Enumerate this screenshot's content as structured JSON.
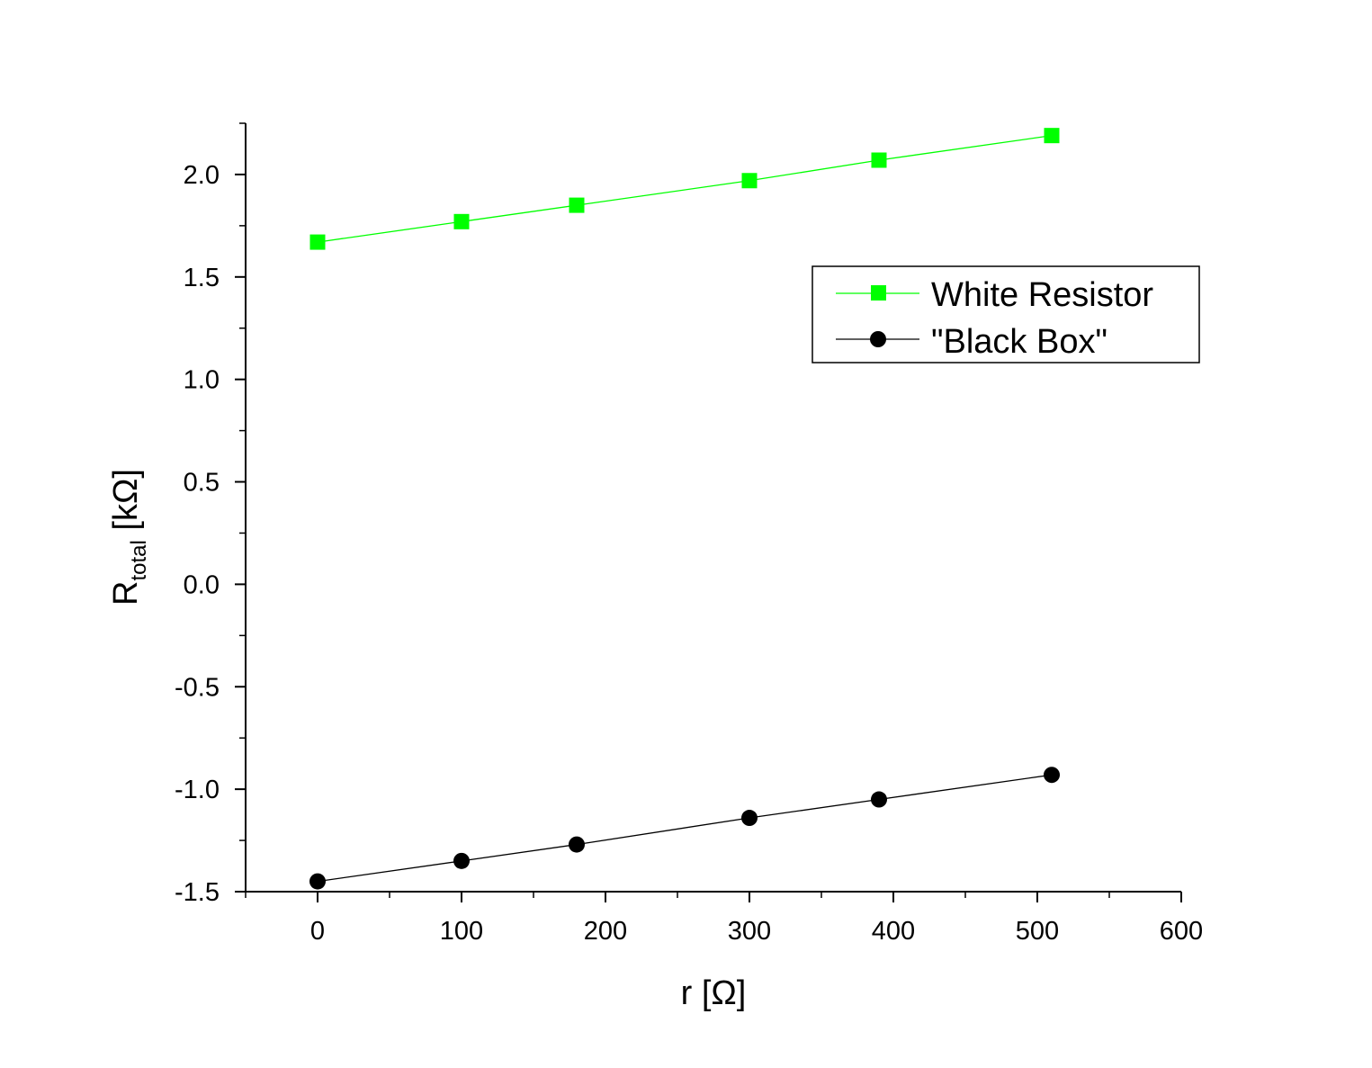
{
  "chart_data": {
    "type": "line",
    "title": "",
    "xlabel": "r [Ω]",
    "ylabel": {
      "main": "R",
      "subscript": "total",
      "unit": " [kΩ]"
    },
    "xlim": [
      -50,
      600
    ],
    "ylim": [
      -1.5,
      2.25
    ],
    "xticks": [
      0,
      100,
      200,
      300,
      400,
      500,
      600
    ],
    "xtick_labels": [
      "0",
      "100",
      "200",
      "300",
      "400",
      "500",
      "600"
    ],
    "yticks": [
      -1.5,
      -1.0,
      -0.5,
      0.0,
      0.5,
      1.0,
      1.5,
      2.0
    ],
    "ytick_labels": [
      "-1.5",
      "-1.0",
      "-0.5",
      "0.0",
      "0.5",
      "1.0",
      "1.5",
      "2.0"
    ],
    "grid": false,
    "legend_position": "upper-right",
    "series": [
      {
        "name": "White Resistor",
        "color": "#00ff00",
        "marker": "square",
        "x": [
          0,
          100,
          180,
          300,
          390,
          510
        ],
        "y": [
          1.67,
          1.77,
          1.85,
          1.97,
          2.07,
          2.19
        ]
      },
      {
        "name": "\"Black Box\"",
        "color": "#000000",
        "marker": "circle",
        "x": [
          0,
          100,
          180,
          300,
          390,
          510
        ],
        "y": [
          -1.45,
          -1.35,
          -1.27,
          -1.14,
          -1.05,
          -0.93
        ]
      }
    ]
  }
}
